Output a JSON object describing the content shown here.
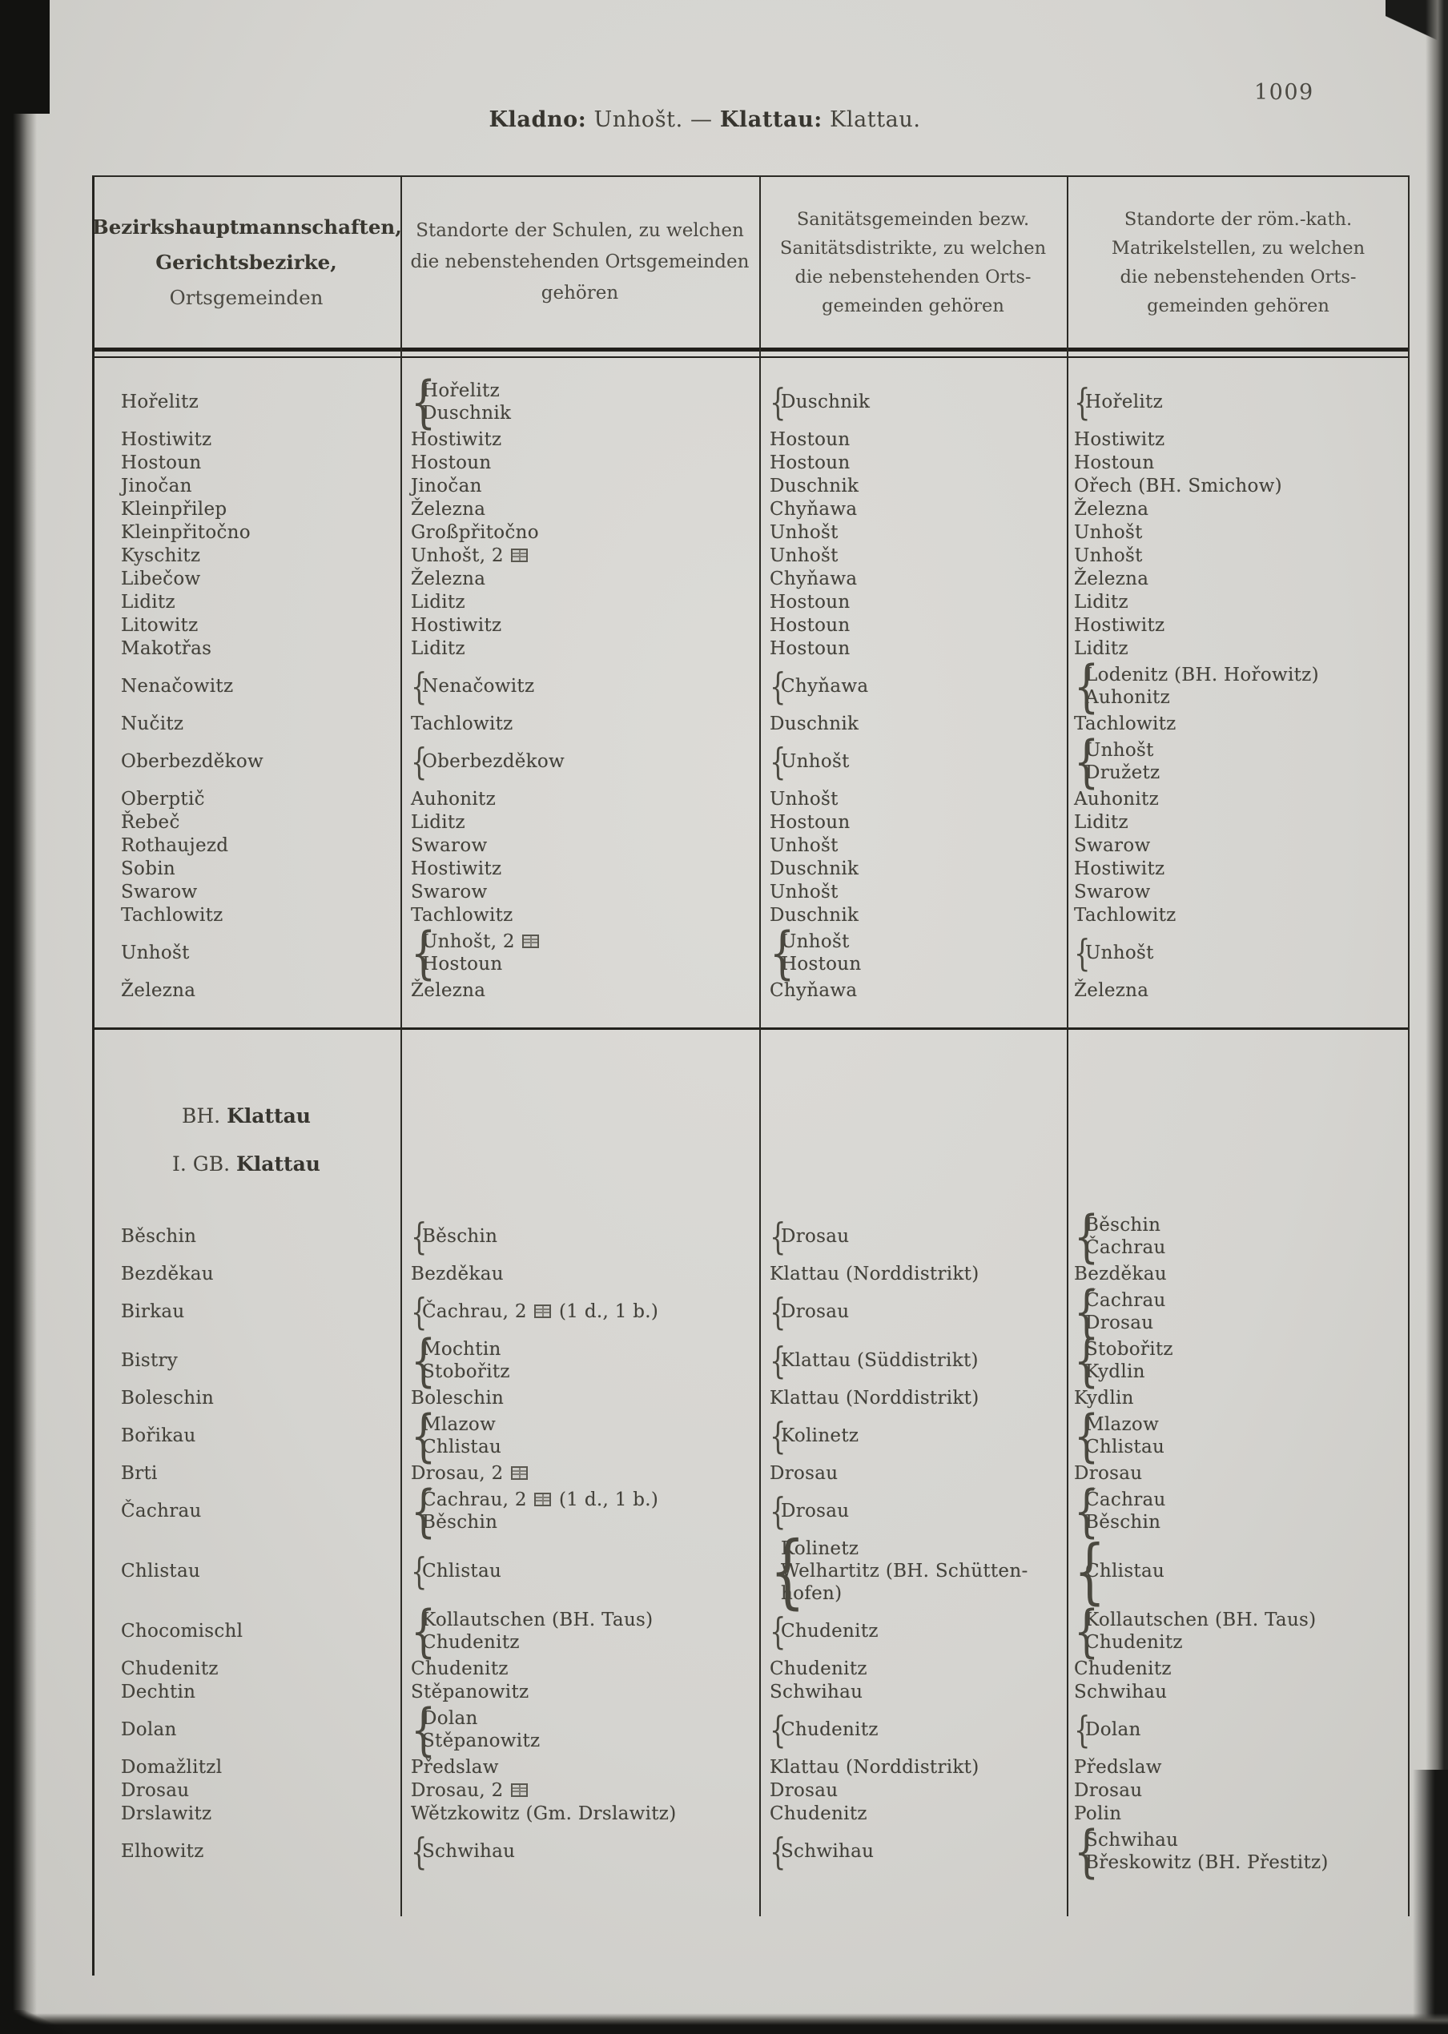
{
  "page": {
    "number": "1009",
    "title_segments": [
      {
        "text": "Kladno:",
        "bold": true
      },
      {
        "text": " Unhošt. ",
        "bold": false
      },
      {
        "text": "— ",
        "bold": false
      },
      {
        "text": "Klattau:",
        "bold": true
      },
      {
        "text": " Klattau.",
        "bold": false
      }
    ]
  },
  "table": {
    "headers": [
      {
        "lines": [
          "Bezirkshauptmannschaften,",
          "Gerichtsbezirke,",
          "Ortsgemeinden"
        ]
      },
      {
        "lines": [
          "Standorte der Schulen, zu welchen",
          "die nebenstehenden Ortsgemeinden",
          "gehören"
        ]
      },
      {
        "lines": [
          "Sanitätsgemeinden bezw.",
          "Sanitätsdistrikte, zu welchen",
          "die nebenstehenden Orts-",
          "gemeinden gehören"
        ]
      },
      {
        "lines": [
          "Standorte der röm.-kath.",
          "Matrikelstellen, zu welchen",
          "die nebenstehenden Orts-",
          "gemeinden gehören"
        ]
      }
    ],
    "school_symbol_name": "school-symbol",
    "sections": [
      {
        "heading": null,
        "rows": [
          {
            "name": "Hořelitz",
            "school": {
              "brace": true,
              "lines": [
                "Hořelitz",
                "Duschnik"
              ]
            },
            "sanitary": {
              "brace": true,
              "lines": [
                "Duschnik"
              ]
            },
            "parish": {
              "brace": true,
              "lines": [
                "Hořelitz"
              ]
            }
          },
          {
            "name": "Hostiwitz",
            "school": {
              "lines": [
                "Hostiwitz"
              ]
            },
            "sanitary": {
              "lines": [
                "Hostoun"
              ]
            },
            "parish": {
              "lines": [
                "Hostiwitz"
              ]
            }
          },
          {
            "name": "Hostoun",
            "school": {
              "lines": [
                "Hostoun"
              ]
            },
            "sanitary": {
              "lines": [
                "Hostoun"
              ]
            },
            "parish": {
              "lines": [
                "Hostoun"
              ]
            }
          },
          {
            "name": "Jinočan",
            "school": {
              "lines": [
                "Jinočan"
              ]
            },
            "sanitary": {
              "lines": [
                "Duschnik"
              ]
            },
            "parish": {
              "lines": [
                "Ořech (BH. Smichow)"
              ]
            }
          },
          {
            "name": "Kleinpřilep",
            "school": {
              "lines": [
                "Železna"
              ]
            },
            "sanitary": {
              "lines": [
                "Chyňawa"
              ]
            },
            "parish": {
              "lines": [
                "Železna"
              ]
            }
          },
          {
            "name": "Kleinpřitočno",
            "school": {
              "lines": [
                "Großpřitočno"
              ]
            },
            "sanitary": {
              "lines": [
                "Unhošt"
              ]
            },
            "parish": {
              "lines": [
                "Unhošt"
              ]
            }
          },
          {
            "name": "Kyschitz",
            "school": {
              "lines": [
                [
                  "Unhošt, 2 ",
                  {
                    "icon": "school"
                  }
                ]
              ]
            },
            "sanitary": {
              "lines": [
                "Unhošt"
              ]
            },
            "parish": {
              "lines": [
                "Unhošt"
              ]
            }
          },
          {
            "name": "Libečow",
            "school": {
              "lines": [
                "Železna"
              ]
            },
            "sanitary": {
              "lines": [
                "Chyňawa"
              ]
            },
            "parish": {
              "lines": [
                "Železna"
              ]
            }
          },
          {
            "name": "Liditz",
            "school": {
              "lines": [
                "Liditz"
              ]
            },
            "sanitary": {
              "lines": [
                "Hostoun"
              ]
            },
            "parish": {
              "lines": [
                "Liditz"
              ]
            }
          },
          {
            "name": "Litowitz",
            "school": {
              "lines": [
                "Hostiwitz"
              ]
            },
            "sanitary": {
              "lines": [
                "Hostoun"
              ]
            },
            "parish": {
              "lines": [
                "Hostiwitz"
              ]
            }
          },
          {
            "name": "Makotřas",
            "school": {
              "lines": [
                "Liditz"
              ]
            },
            "sanitary": {
              "lines": [
                "Hostoun"
              ]
            },
            "parish": {
              "lines": [
                "Liditz"
              ]
            }
          },
          {
            "name": "Nenačowitz",
            "school": {
              "brace": true,
              "lines": [
                "Nenačowitz"
              ]
            },
            "sanitary": {
              "brace": true,
              "lines": [
                "Chyňawa"
              ]
            },
            "parish": {
              "brace": true,
              "lines": [
                "Lodenitz (BH. Hořowitz)",
                "Auhonitz"
              ]
            }
          },
          {
            "name": "Nučitz",
            "school": {
              "lines": [
                "Tachlowitz"
              ]
            },
            "sanitary": {
              "lines": [
                "Duschnik"
              ]
            },
            "parish": {
              "lines": [
                "Tachlowitz"
              ]
            }
          },
          {
            "name": "Oberbezděkow",
            "school": {
              "brace": true,
              "lines": [
                "Oberbezděkow"
              ]
            },
            "sanitary": {
              "brace": true,
              "lines": [
                "Unhošt"
              ]
            },
            "parish": {
              "brace": true,
              "lines": [
                "Unhošt",
                "Družetz"
              ]
            }
          },
          {
            "name": "Oberptič",
            "school": {
              "lines": [
                "Auhonitz"
              ]
            },
            "sanitary": {
              "lines": [
                "Unhošt"
              ]
            },
            "parish": {
              "lines": [
                "Auhonitz"
              ]
            }
          },
          {
            "name": "Řebeč",
            "school": {
              "lines": [
                "Liditz"
              ]
            },
            "sanitary": {
              "lines": [
                "Hostoun"
              ]
            },
            "parish": {
              "lines": [
                "Liditz"
              ]
            }
          },
          {
            "name": "Rothaujezd",
            "school": {
              "lines": [
                "Swarow"
              ]
            },
            "sanitary": {
              "lines": [
                "Unhošt"
              ]
            },
            "parish": {
              "lines": [
                "Swarow"
              ]
            }
          },
          {
            "name": "Sobin",
            "school": {
              "lines": [
                "Hostiwitz"
              ]
            },
            "sanitary": {
              "lines": [
                "Duschnik"
              ]
            },
            "parish": {
              "lines": [
                "Hostiwitz"
              ]
            }
          },
          {
            "name": "Swarow",
            "school": {
              "lines": [
                "Swarow"
              ]
            },
            "sanitary": {
              "lines": [
                "Unhošt"
              ]
            },
            "parish": {
              "lines": [
                "Swarow"
              ]
            }
          },
          {
            "name": "Tachlowitz",
            "school": {
              "lines": [
                "Tachlowitz"
              ]
            },
            "sanitary": {
              "lines": [
                "Duschnik"
              ]
            },
            "parish": {
              "lines": [
                "Tachlowitz"
              ]
            }
          },
          {
            "name": "Unhošt",
            "school": {
              "brace": true,
              "lines": [
                [
                  "Unhošt, 2 ",
                  {
                    "icon": "school"
                  }
                ],
                "Hostoun"
              ]
            },
            "sanitary": {
              "brace": true,
              "lines": [
                "Unhošt",
                "Hostoun"
              ]
            },
            "parish": {
              "brace": true,
              "lines": [
                "Unhošt"
              ]
            }
          },
          {
            "name": "Železna",
            "school": {
              "lines": [
                "Železna"
              ]
            },
            "sanitary": {
              "lines": [
                "Chyňawa"
              ]
            },
            "parish": {
              "lines": [
                "Železna"
              ]
            }
          }
        ]
      },
      {
        "heading": {
          "line1": [
            {
              "text": "BH. ",
              "bold": false
            },
            {
              "text": "Klattau",
              "bold": true
            }
          ],
          "line2": [
            {
              "text": "I. GB. ",
              "bold": false
            },
            {
              "text": "Klattau",
              "bold": true
            }
          ]
        },
        "rows": [
          {
            "name": "Běschin",
            "school": {
              "brace": true,
              "lines": [
                "Běschin"
              ]
            },
            "sanitary": {
              "brace": true,
              "lines": [
                "Drosau"
              ]
            },
            "parish": {
              "brace": true,
              "lines": [
                "Běschin",
                "Čachrau"
              ]
            }
          },
          {
            "name": "Bezděkau",
            "school": {
              "lines": [
                "Bezděkau"
              ]
            },
            "sanitary": {
              "lines": [
                "Klattau (Norddistrikt)"
              ]
            },
            "parish": {
              "lines": [
                "Bezděkau"
              ]
            }
          },
          {
            "name": "Birkau",
            "school": {
              "brace": true,
              "lines": [
                [
                  "Čachrau, 2 ",
                  {
                    "icon": "school"
                  },
                  " (1 d., 1 b.)"
                ]
              ]
            },
            "sanitary": {
              "brace": true,
              "lines": [
                "Drosau"
              ]
            },
            "parish": {
              "brace": true,
              "lines": [
                "Čachrau",
                "Drosau"
              ]
            }
          },
          {
            "name": "Bistry",
            "school": {
              "brace": true,
              "lines": [
                "Mochtin",
                "Stobořitz"
              ]
            },
            "sanitary": {
              "brace": true,
              "lines": [
                "Klattau (Süddistrikt)"
              ]
            },
            "parish": {
              "brace": true,
              "lines": [
                "Stobořitz",
                "Kydlin"
              ]
            }
          },
          {
            "name": "Boleschin",
            "school": {
              "lines": [
                "Boleschin"
              ]
            },
            "sanitary": {
              "lines": [
                "Klattau (Norddistrikt)"
              ]
            },
            "parish": {
              "lines": [
                "Kydlin"
              ]
            }
          },
          {
            "name": "Bořikau",
            "school": {
              "brace": true,
              "lines": [
                "Mlazow",
                "Chlistau"
              ]
            },
            "sanitary": {
              "brace": true,
              "lines": [
                "Kolinetz"
              ]
            },
            "parish": {
              "brace": true,
              "lines": [
                "Mlazow",
                "Chlistau"
              ]
            }
          },
          {
            "name": "Brti",
            "school": {
              "lines": [
                [
                  "Drosau, 2 ",
                  {
                    "icon": "school"
                  }
                ]
              ]
            },
            "sanitary": {
              "lines": [
                "Drosau"
              ]
            },
            "parish": {
              "lines": [
                "Drosau"
              ]
            }
          },
          {
            "name": "Čachrau",
            "school": {
              "brace": true,
              "lines": [
                [
                  "Čachrau, 2 ",
                  {
                    "icon": "school"
                  },
                  " (1 d., 1 b.)"
                ],
                "Běschin"
              ]
            },
            "sanitary": {
              "brace": true,
              "lines": [
                "Drosau"
              ]
            },
            "parish": {
              "brace": true,
              "lines": [
                "Čachrau",
                "Běschin"
              ]
            }
          },
          {
            "name": "Chlistau",
            "school": {
              "brace": true,
              "lines": [
                "Chlistau"
              ]
            },
            "sanitary": {
              "brace": true,
              "lines": [
                "Kolinetz",
                "Welhartitz (BH. Schütten-",
                "  hofen)"
              ]
            },
            "parish": {
              "brace": true,
              "big": true,
              "lines": [
                "Chlistau"
              ]
            }
          },
          {
            "name": "Chocomischl",
            "school": {
              "brace": true,
              "lines": [
                "Kollautschen (BH. Taus)",
                "Chudenitz"
              ]
            },
            "sanitary": {
              "brace": true,
              "lines": [
                "Chudenitz"
              ]
            },
            "parish": {
              "brace": true,
              "lines": [
                "Kollautschen (BH. Taus)",
                "Chudenitz"
              ]
            }
          },
          {
            "name": "Chudenitz",
            "school": {
              "lines": [
                "Chudenitz"
              ]
            },
            "sanitary": {
              "lines": [
                "Chudenitz"
              ]
            },
            "parish": {
              "lines": [
                "Chudenitz"
              ]
            }
          },
          {
            "name": "Dechtin",
            "school": {
              "lines": [
                "Stěpanowitz"
              ]
            },
            "sanitary": {
              "lines": [
                "Schwihau"
              ]
            },
            "parish": {
              "lines": [
                "Schwihau"
              ]
            }
          },
          {
            "name": "Dolan",
            "school": {
              "brace": true,
              "lines": [
                "Dolan",
                "Stěpanowitz"
              ]
            },
            "sanitary": {
              "brace": true,
              "lines": [
                "Chudenitz"
              ]
            },
            "parish": {
              "brace": true,
              "lines": [
                "Dolan"
              ]
            }
          },
          {
            "name": "Domažlitzl",
            "school": {
              "lines": [
                "Předslaw"
              ]
            },
            "sanitary": {
              "lines": [
                "Klattau (Norddistrikt)"
              ]
            },
            "parish": {
              "lines": [
                "Předslaw"
              ]
            }
          },
          {
            "name": "Drosau",
            "school": {
              "lines": [
                [
                  "Drosau, 2 ",
                  {
                    "icon": "school"
                  }
                ]
              ]
            },
            "sanitary": {
              "lines": [
                "Drosau"
              ]
            },
            "parish": {
              "lines": [
                "Drosau"
              ]
            }
          },
          {
            "name": "Drslawitz",
            "school": {
              "lines": [
                "Wětzkowitz (Gm. Drslawitz)"
              ]
            },
            "sanitary": {
              "lines": [
                "Chudenitz"
              ]
            },
            "parish": {
              "lines": [
                "Polin"
              ]
            }
          },
          {
            "name": "Elhowitz",
            "school": {
              "brace": true,
              "lines": [
                "Schwihau"
              ]
            },
            "sanitary": {
              "brace": true,
              "lines": [
                "Schwihau"
              ]
            },
            "parish": {
              "brace": true,
              "lines": [
                "Schwihau",
                "Břeskowitz (BH. Přestitz)"
              ]
            }
          }
        ]
      }
    ]
  }
}
